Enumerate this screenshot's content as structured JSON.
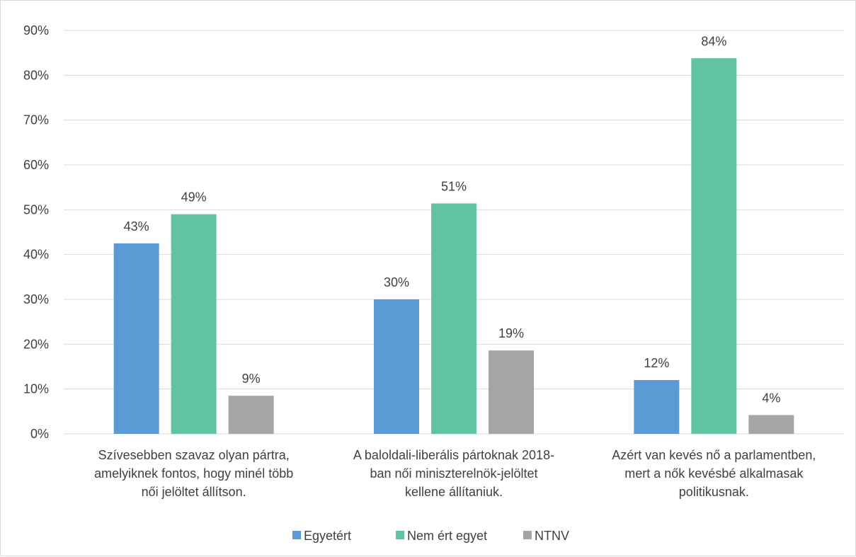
{
  "chart_data": {
    "type": "bar",
    "title": "",
    "xlabel": "",
    "ylabel": "",
    "ylim": [
      0,
      90
    ],
    "y_ticks": [
      "0%",
      "10%",
      "20%",
      "30%",
      "40%",
      "50%",
      "60%",
      "70%",
      "80%",
      "90%"
    ],
    "grid": true,
    "legend_position": "bottom",
    "categories": [
      [
        "Szívesebben szavaz olyan pártra,",
        "amelyiknek fontos, hogy minél több",
        "női jelöltet állítson."
      ],
      [
        "A baloldali-liberális pártoknak 2018-",
        "ban női miniszterelnök-jelöltet",
        "kellene állítaniuk."
      ],
      [
        "Azért van kevés nő a parlamentben,",
        "mert a nők kevésbé alkalmasak",
        "politikusnak."
      ]
    ],
    "series": [
      {
        "name": "Egyetért",
        "color": "#5b9bd5",
        "values": [
          42.5,
          30,
          12
        ],
        "labels": [
          "43%",
          "30%",
          "12%"
        ]
      },
      {
        "name": "Nem ért egyet",
        "color": "#62c3a2",
        "values": [
          49,
          51.4,
          83.8
        ],
        "labels": [
          "49%",
          "51%",
          "84%"
        ]
      },
      {
        "name": "NTNV",
        "color": "#a5a5a5",
        "values": [
          8.5,
          18.6,
          4.2
        ],
        "labels": [
          "9%",
          "19%",
          "4%"
        ]
      }
    ]
  }
}
